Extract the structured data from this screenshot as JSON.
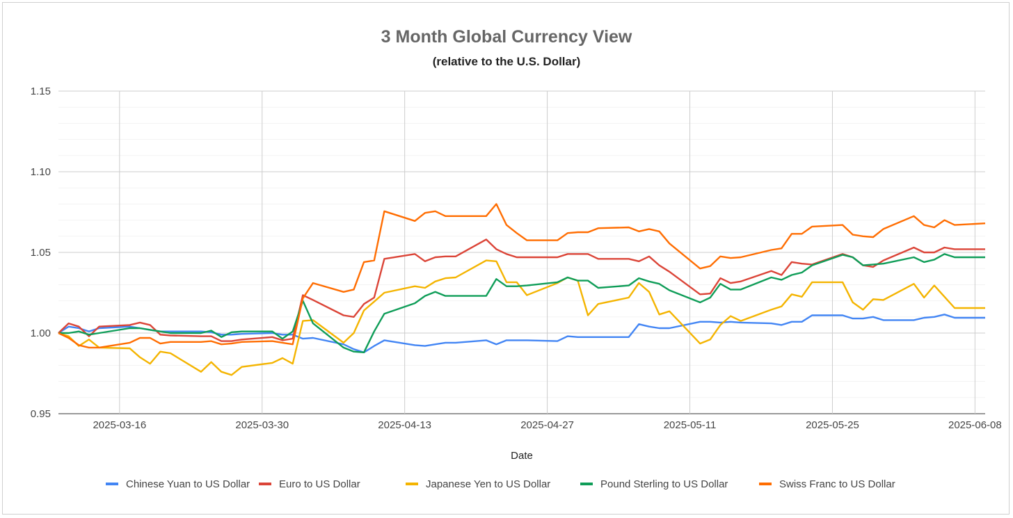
{
  "chart_data": {
    "type": "line",
    "title": "3 Month Global Currency View",
    "subtitle": "(relative to the U.S. Dollar)",
    "xlabel": "Date",
    "ylabel": "",
    "ylim": [
      0.95,
      1.15
    ],
    "xlim": [
      "2025-03-10",
      "2025-06-09"
    ],
    "yticks": [
      "0.95",
      "1.00",
      "1.05",
      "1.10",
      "1.15"
    ],
    "xticks": [
      "2025-03-16",
      "2025-03-30",
      "2025-04-13",
      "2025-04-27",
      "2025-05-11",
      "2025-05-25",
      "2025-06-08"
    ],
    "grid": true,
    "legend_position": "bottom",
    "x": [
      "2025-03-10",
      "2025-03-11",
      "2025-03-12",
      "2025-03-13",
      "2025-03-14",
      "2025-03-17",
      "2025-03-18",
      "2025-03-19",
      "2025-03-20",
      "2025-03-21",
      "2025-03-24",
      "2025-03-25",
      "2025-03-26",
      "2025-03-27",
      "2025-03-28",
      "2025-03-31",
      "2025-04-01",
      "2025-04-02",
      "2025-04-03",
      "2025-04-04",
      "2025-04-07",
      "2025-04-08",
      "2025-04-09",
      "2025-04-10",
      "2025-04-11",
      "2025-04-14",
      "2025-04-15",
      "2025-04-16",
      "2025-04-17",
      "2025-04-18",
      "2025-04-21",
      "2025-04-22",
      "2025-04-23",
      "2025-04-24",
      "2025-04-25",
      "2025-04-28",
      "2025-04-29",
      "2025-04-30",
      "2025-05-01",
      "2025-05-02",
      "2025-05-05",
      "2025-05-06",
      "2025-05-07",
      "2025-05-08",
      "2025-05-09",
      "2025-05-12",
      "2025-05-13",
      "2025-05-14",
      "2025-05-15",
      "2025-05-16",
      "2025-05-19",
      "2025-05-20",
      "2025-05-21",
      "2025-05-22",
      "2025-05-23",
      "2025-05-26",
      "2025-05-27",
      "2025-05-28",
      "2025-05-29",
      "2025-05-30",
      "2025-06-02",
      "2025-06-03",
      "2025-06-04",
      "2025-06-05",
      "2025-06-06",
      "2025-06-09"
    ],
    "series": [
      {
        "name": "Chinese Yuan to US Dollar",
        "color": "#4285F4",
        "values": [
          1.0,
          1.004,
          1.003,
          1.001,
          1.003,
          1.004,
          1.003,
          1.002,
          1.001,
          1.001,
          1.001,
          1.0005,
          0.999,
          0.999,
          0.9995,
          1.0,
          0.999,
          0.999,
          0.9965,
          0.997,
          0.993,
          0.99,
          0.988,
          0.992,
          0.9955,
          0.9925,
          0.992,
          0.993,
          0.994,
          0.994,
          0.9955,
          0.993,
          0.9955,
          0.9955,
          0.9955,
          0.995,
          0.998,
          0.9975,
          0.9975,
          0.9975,
          0.9975,
          1.0055,
          1.004,
          1.003,
          1.003,
          1.007,
          1.007,
          1.0065,
          1.007,
          1.0065,
          1.006,
          1.005,
          1.007,
          1.007,
          1.011,
          1.011,
          1.009,
          1.009,
          1.01,
          1.008,
          1.008,
          1.0095,
          1.01,
          1.0115,
          1.0095,
          1.0095
        ]
      },
      {
        "name": "Euro to US Dollar",
        "color": "#DB4437",
        "values": [
          1.0,
          1.006,
          1.004,
          0.998,
          1.004,
          1.005,
          1.0065,
          1.005,
          0.999,
          0.9985,
          0.998,
          0.998,
          0.995,
          0.995,
          0.996,
          0.9975,
          0.9955,
          0.9965,
          1.0235,
          1.0205,
          1.011,
          1.01,
          1.018,
          1.022,
          1.046,
          1.049,
          1.0445,
          1.047,
          1.0475,
          1.0475,
          1.058,
          1.052,
          1.049,
          1.047,
          1.047,
          1.047,
          1.049,
          1.049,
          1.049,
          1.046,
          1.046,
          1.0445,
          1.0475,
          1.042,
          1.038,
          1.024,
          1.0245,
          1.034,
          1.031,
          1.032,
          1.0385,
          1.036,
          1.044,
          1.043,
          1.0425,
          1.049,
          1.047,
          1.042,
          1.041,
          1.045,
          1.053,
          1.05,
          1.05,
          1.053,
          1.052,
          1.052
        ]
      },
      {
        "name": "Japanese Yen to US Dollar",
        "color": "#F4B400",
        "values": [
          1.0,
          0.998,
          0.992,
          0.996,
          0.991,
          0.9905,
          0.985,
          0.981,
          0.9885,
          0.9875,
          0.976,
          0.982,
          0.976,
          0.974,
          0.979,
          0.9815,
          0.9845,
          0.981,
          1.0075,
          1.008,
          0.994,
          1.0,
          1.014,
          1.0195,
          1.025,
          1.029,
          1.028,
          1.032,
          1.034,
          1.0345,
          1.045,
          1.0445,
          1.0315,
          1.0315,
          1.0235,
          1.031,
          1.0345,
          1.0325,
          1.011,
          1.018,
          1.022,
          1.031,
          1.0255,
          1.0115,
          1.0135,
          0.9935,
          0.996,
          1.005,
          1.0105,
          1.0075,
          1.0145,
          1.0165,
          1.024,
          1.0225,
          1.0315,
          1.0315,
          1.019,
          1.0145,
          1.021,
          1.0205,
          1.0305,
          1.022,
          1.0295,
          1.0225,
          1.0155,
          1.0155
        ]
      },
      {
        "name": "Pound Sterling to US Dollar",
        "color": "#0F9D58",
        "values": [
          1.0,
          1.0,
          1.001,
          0.999,
          1.0,
          1.003,
          1.003,
          1.002,
          1.001,
          1.0,
          1.0,
          1.0015,
          0.9975,
          1.0005,
          1.001,
          1.001,
          0.9965,
          1.001,
          1.02,
          1.006,
          0.991,
          0.9885,
          0.988,
          1.001,
          1.012,
          1.0185,
          1.023,
          1.0255,
          1.023,
          1.023,
          1.023,
          1.0335,
          1.029,
          1.029,
          1.0295,
          1.0315,
          1.0345,
          1.0325,
          1.0325,
          1.028,
          1.0295,
          1.034,
          1.032,
          1.0305,
          1.0265,
          1.019,
          1.022,
          1.0305,
          1.027,
          1.027,
          1.0345,
          1.033,
          1.036,
          1.0375,
          1.042,
          1.0485,
          1.047,
          1.042,
          1.0425,
          1.043,
          1.047,
          1.044,
          1.0455,
          1.049,
          1.047,
          1.047
        ]
      },
      {
        "name": "Swiss Franc to US Dollar",
        "color": "#FF6D01",
        "values": [
          1.0,
          0.997,
          0.9925,
          0.991,
          0.991,
          0.994,
          0.997,
          0.997,
          0.9935,
          0.9945,
          0.9945,
          0.995,
          0.993,
          0.9935,
          0.9945,
          0.995,
          0.994,
          0.993,
          1.0215,
          1.031,
          1.0255,
          1.027,
          1.044,
          1.045,
          1.0755,
          1.0695,
          1.0745,
          1.0755,
          1.0725,
          1.0725,
          1.0725,
          1.08,
          1.067,
          1.062,
          1.0575,
          1.0575,
          1.062,
          1.0625,
          1.0625,
          1.065,
          1.0655,
          1.063,
          1.0645,
          1.063,
          1.0555,
          1.04,
          1.0415,
          1.0475,
          1.0465,
          1.047,
          1.0515,
          1.0525,
          1.0615,
          1.0615,
          1.066,
          1.067,
          1.061,
          1.06,
          1.0595,
          1.0645,
          1.0725,
          1.067,
          1.0655,
          1.07,
          1.067,
          1.068
        ]
      }
    ]
  }
}
